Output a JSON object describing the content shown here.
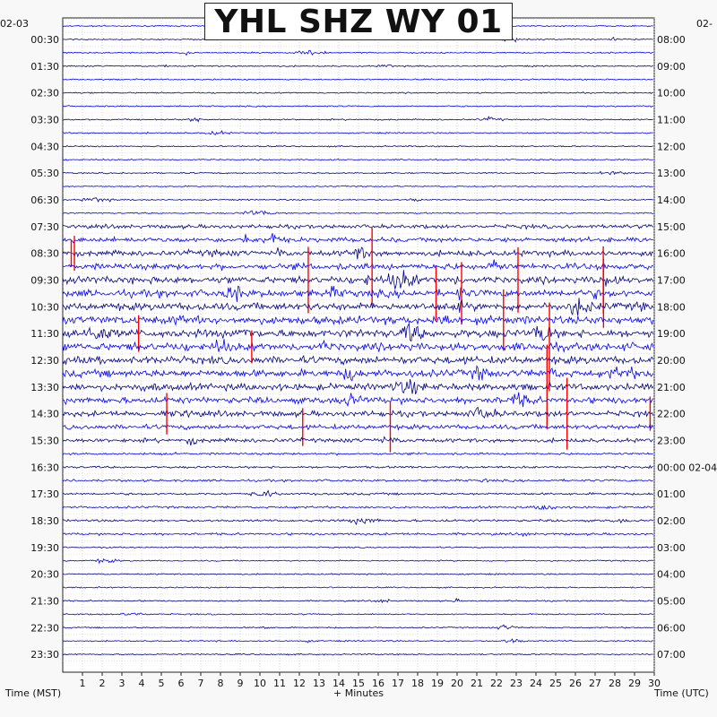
{
  "title": "YHL SHZ WY 01",
  "date_left": "02-03",
  "date_right": "02-",
  "chart_data": {
    "type": "helicorder",
    "title": "YHL SHZ WY 01",
    "xlabel": "+ Minutes",
    "ylabel_left": "Time (MST)",
    "ylabel_right": "Time (UTC)",
    "x_ticks": [
      1,
      2,
      3,
      4,
      5,
      6,
      7,
      8,
      9,
      10,
      11,
      12,
      13,
      14,
      15,
      16,
      17,
      18,
      19,
      20,
      21,
      22,
      23,
      24,
      25,
      26,
      27,
      28,
      29,
      30
    ],
    "xlim": [
      0,
      30
    ],
    "rows_per_hour": 2,
    "left_labels": [
      "00:30",
      "01:30",
      "02:30",
      "03:30",
      "04:30",
      "05:30",
      "06:30",
      "07:30",
      "08:30",
      "09:30",
      "10:30",
      "11:30",
      "12:30",
      "13:30",
      "14:30",
      "15:30",
      "16:30",
      "17:30",
      "18:30",
      "19:30",
      "20:30",
      "21:30",
      "22:30",
      "23:30"
    ],
    "right_labels": [
      "08:00",
      "09:00",
      "10:00",
      "11:00",
      "12:00",
      "13:00",
      "14:00",
      "15:00",
      "16:00",
      "17:00",
      "18:00",
      "19:00",
      "20:00",
      "21:00",
      "22:00",
      "23:00",
      "00:00 02-04",
      "01:00",
      "02:00",
      "03:00",
      "04:00",
      "05:00",
      "06:00",
      "07:00"
    ],
    "trace_colors": [
      "#0000ff",
      "#00008b"
    ],
    "clip_color": "#ff0000",
    "grid": "dotted"
  }
}
